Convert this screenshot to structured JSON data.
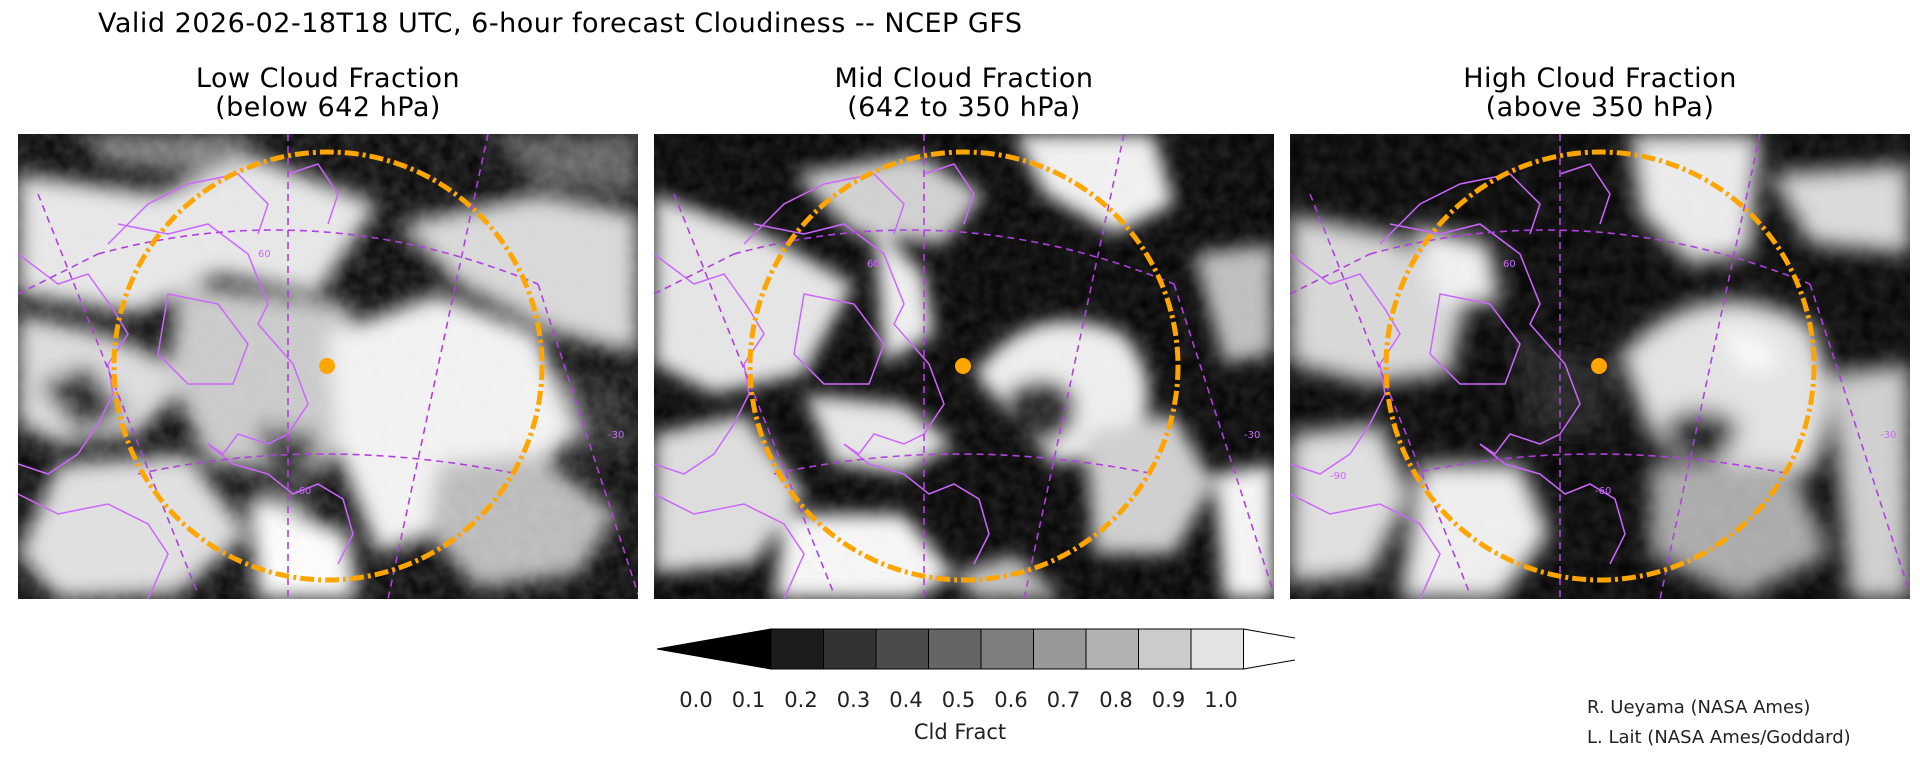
{
  "header": {
    "title": "Valid 2026-02-18T18 UTC, 6-hour forecast Cloudiness -- NCEP GFS"
  },
  "panels": [
    {
      "title_line1": "Low Cloud Fraction",
      "title_line2": "(below 642 hPa)",
      "field": "low"
    },
    {
      "title_line1": "Mid Cloud Fraction",
      "title_line2": "(642 to 350 hPa)",
      "field": "mid"
    },
    {
      "title_line1": "High Cloud Fraction",
      "title_line2": "(above 350 hPa)",
      "field": "high"
    }
  ],
  "map_labels": {
    "lat_60": "60",
    "lon_minus_30": "-30",
    "lon_minus_60": "-60",
    "lon_minus_90": "-90"
  },
  "colorbar": {
    "title": "Cld Fract",
    "ticks": [
      "0.0",
      "0.1",
      "0.2",
      "0.3",
      "0.4",
      "0.5",
      "0.6",
      "0.7",
      "0.8",
      "0.9",
      "1.0"
    ],
    "colors": [
      "#000000",
      "#1c1c1c",
      "#333333",
      "#4b4b4b",
      "#656565",
      "#7e7e7e",
      "#989898",
      "#b2b2b2",
      "#cbcbcb",
      "#e4e4e4",
      "#ffffff"
    ]
  },
  "colors": {
    "coastline": "#cc66ff",
    "gridline": "#b040e0",
    "range_ring": "#ffa500",
    "marker": "#ffa500"
  },
  "credits": {
    "line1": "R. Ueyama (NASA Ames)",
    "line2": "L. Lait (NASA Ames/Goddard)"
  }
}
